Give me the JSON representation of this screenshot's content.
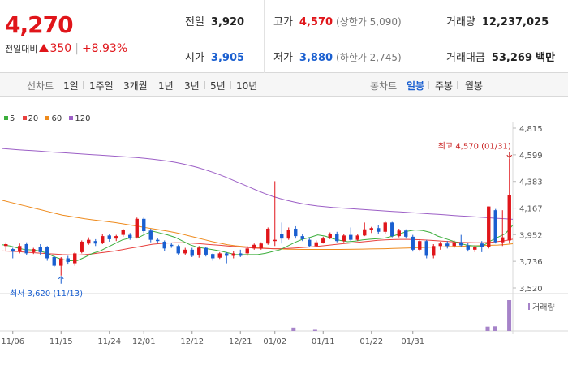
{
  "header": {
    "price": "4,270",
    "change_label": "전일대비",
    "change_amount": "350",
    "change_pct": "+8.93%",
    "stats": {
      "prev_close": {
        "label": "전일",
        "value": "3,920"
      },
      "open": {
        "label": "시가",
        "value": "3,905"
      },
      "high": {
        "label": "고가",
        "value": "4,570",
        "note": "(상한가 5,090)"
      },
      "low": {
        "label": "저가",
        "value": "3,880",
        "note": "(하한가 2,745)"
      },
      "volume": {
        "label": "거래량",
        "value": "12,237,025"
      },
      "turnover": {
        "label": "거래대금",
        "value": "53,269",
        "unit": "백만"
      }
    }
  },
  "tabs": {
    "line_label": "선차트",
    "periods": [
      "1일",
      "1주일",
      "3개월",
      "1년",
      "3년",
      "5년",
      "10년"
    ],
    "candle_label": "봉차트",
    "candle_periods": [
      "일봉",
      "주봉",
      "월봉"
    ],
    "active_candle": "일봉"
  },
  "colors": {
    "up": "#e0151a",
    "down": "#1a5fd0",
    "ma5": "#3cae3c",
    "ma20": "#e8413e",
    "ma60": "#ee8a1c",
    "ma120": "#9c5fc6",
    "volume": "#a683c9"
  },
  "legend": [
    {
      "label": "5",
      "color": "#3cae3c"
    },
    {
      "label": "20",
      "color": "#e8413e"
    },
    {
      "label": "60",
      "color": "#ee8a1c"
    },
    {
      "label": "120",
      "color": "#9c5fc6"
    }
  ],
  "chart_data": {
    "type": "candlestick",
    "y_ticks": [
      4815,
      4599,
      4383,
      4167,
      3952,
      3736,
      3520
    ],
    "y_tick_labels": [
      "4,815",
      "4,599",
      "4,383",
      "4,167",
      "3,952",
      "3,736",
      "3,520"
    ],
    "ylim": [
      3520,
      4815
    ],
    "x_labels": [
      "11/06",
      "11/15",
      "11/24",
      "12/01",
      "12/12",
      "12/21",
      "01/02",
      "01/11",
      "01/22",
      "01/31"
    ],
    "x_label_index": [
      1,
      8,
      15,
      20,
      27,
      34,
      39,
      46,
      53,
      59
    ],
    "max_annotation": "최고 4,570 (01/31)",
    "min_annotation": "최저 3,620 (11/13)",
    "volume_label": "거래량",
    "candles": [
      [
        3860,
        3875,
        3815,
        3890
      ],
      [
        3835,
        3815,
        3760,
        3845
      ],
      [
        3820,
        3860,
        3800,
        3880
      ],
      [
        3875,
        3800,
        3785,
        3890
      ],
      [
        3810,
        3835,
        3795,
        3845
      ],
      [
        3855,
        3810,
        3790,
        3875
      ],
      [
        3850,
        3760,
        3740,
        3860
      ],
      [
        3770,
        3700,
        3690,
        3780
      ],
      [
        3700,
        3760,
        3620,
        3770
      ],
      [
        3760,
        3730,
        3710,
        3780
      ],
      [
        3720,
        3800,
        3700,
        3810
      ],
      [
        3810,
        3895,
        3800,
        3905
      ],
      [
        3880,
        3910,
        3870,
        3930
      ],
      [
        3900,
        3880,
        3860,
        3915
      ],
      [
        3885,
        3940,
        3875,
        3955
      ],
      [
        3945,
        3915,
        3895,
        3955
      ],
      [
        3920,
        3940,
        3900,
        3950
      ],
      [
        3950,
        3990,
        3935,
        4000
      ],
      [
        3950,
        3925,
        3910,
        3965
      ],
      [
        3930,
        4080,
        3920,
        4090
      ],
      [
        4080,
        3980,
        3965,
        4090
      ],
      [
        3985,
        3910,
        3890,
        4000
      ],
      [
        3910,
        3900,
        3880,
        3925
      ],
      [
        3895,
        3840,
        3820,
        3905
      ],
      [
        3870,
        3860,
        3845,
        3885
      ],
      [
        3860,
        3800,
        3790,
        3870
      ],
      [
        3800,
        3830,
        3790,
        3845
      ],
      [
        3830,
        3780,
        3770,
        3845
      ],
      [
        3790,
        3845,
        3765,
        3860
      ],
      [
        3845,
        3790,
        3775,
        3855
      ],
      [
        3795,
        3760,
        3740,
        3800
      ],
      [
        3765,
        3800,
        3755,
        3810
      ],
      [
        3800,
        3780,
        3720,
        3810
      ],
      [
        3780,
        3800,
        3760,
        3820
      ],
      [
        3800,
        3780,
        3770,
        3830
      ]
    ],
    "candles_part2": [
      [
        3800,
        3840,
        3780,
        3860
      ],
      [
        3840,
        3870,
        3830,
        3880
      ],
      [
        3840,
        3880,
        3830,
        3890
      ],
      [
        3880,
        4000,
        3870,
        4010
      ],
      [
        3900,
        3910,
        3860,
        4385
      ],
      [
        3960,
        3920,
        3880,
        4050
      ],
      [
        3920,
        3990,
        3910,
        4010
      ],
      [
        4000,
        3940,
        3920,
        4020
      ],
      [
        3940,
        3915,
        3900,
        3960
      ],
      [
        3910,
        3860,
        3850,
        3925
      ],
      [
        3860,
        3890,
        3855,
        3905
      ],
      [
        3885,
        3920,
        3880,
        3935
      ],
      [
        3925,
        3960,
        3915,
        3970
      ],
      [
        3960,
        3900,
        3890,
        3975
      ],
      [
        3900,
        3945,
        3890,
        3960
      ],
      [
        3950,
        3910,
        3900,
        4010
      ],
      [
        3910,
        3945,
        3900,
        3960
      ],
      [
        3945,
        3995,
        3940,
        4050
      ],
      [
        3990,
        4005,
        3965,
        4015
      ],
      [
        4005,
        3975,
        3960,
        4030
      ],
      [
        3975,
        4050,
        3960,
        4065
      ],
      [
        4050,
        3940,
        3930,
        4055
      ],
      [
        3940,
        3985,
        3930,
        4000
      ],
      [
        3985,
        3935,
        3920,
        3995
      ],
      [
        3935,
        3830,
        3815,
        3950
      ],
      [
        3830,
        3900,
        3815,
        3915
      ],
      [
        3900,
        3780,
        3760,
        3910
      ],
      [
        3780,
        3860,
        3760,
        3875
      ],
      [
        3860,
        3880,
        3830,
        3895
      ],
      [
        3880,
        3860,
        3840,
        3900
      ],
      [
        3860,
        3890,
        3845,
        3905
      ],
      [
        3890,
        3865,
        3850,
        3950
      ],
      [
        3865,
        3830,
        3815,
        3885
      ],
      [
        3830,
        3850,
        3810,
        3865
      ],
      [
        3880,
        3850,
        3810,
        3900
      ],
      [
        3850,
        4180,
        3840,
        4180
      ],
      [
        4150,
        3890,
        3880,
        4160
      ],
      [
        3890,
        3930,
        3860,
        4150
      ],
      [
        3905,
        4270,
        3880,
        4570
      ]
    ],
    "ma5": [
      3870,
      3860,
      3845,
      3830,
      3828,
      3820,
      3800,
      3770,
      3750,
      3740,
      3742,
      3770,
      3800,
      3820,
      3850,
      3880,
      3910,
      3925,
      3925,
      3955,
      3980,
      3965,
      3950,
      3930,
      3900,
      3870,
      3850,
      3840,
      3830,
      3820,
      3805,
      3790,
      3790,
      3790,
      3790,
      3800,
      3815,
      3830,
      3860,
      3890,
      3915,
      3930,
      3950,
      3940,
      3920,
      3905,
      3895,
      3900,
      3910,
      3915,
      3920,
      3925,
      3940,
      3960,
      3980,
      3990,
      3985,
      3970,
      3940,
      3920,
      3900,
      3880,
      3865,
      3860,
      3860,
      3900,
      3930,
      3960,
      4030
    ],
    "ma20": [
      3820,
      3818,
      3815,
      3810,
      3806,
      3802,
      3798,
      3794,
      3790,
      3788,
      3786,
      3790,
      3796,
      3804,
      3812,
      3820,
      3830,
      3842,
      3852,
      3864,
      3874,
      3880,
      3884,
      3886,
      3886,
      3884,
      3880,
      3875,
      3870,
      3866,
      3860,
      3855,
      3850,
      3846,
      3842,
      3840,
      3838,
      3838,
      3840,
      3844,
      3848,
      3852,
      3858,
      3864,
      3870,
      3876,
      3882,
      3888,
      3894,
      3900,
      3906,
      3910,
      3912,
      3914,
      3914,
      3912,
      3910,
      3906,
      3902,
      3898,
      3894,
      3890,
      3888,
      3886,
      3886,
      3890,
      3896,
      3904,
      3915
    ],
    "ma60": [
      4230,
      4215,
      4200,
      4185,
      4170,
      4155,
      4140,
      4125,
      4110,
      4100,
      4090,
      4080,
      4072,
      4065,
      4058,
      4050,
      4040,
      4030,
      4020,
      4010,
      4000,
      3990,
      3980,
      3968,
      3955,
      3940,
      3925,
      3910,
      3895,
      3882,
      3870,
      3862,
      3856,
      3850,
      3846,
      3842,
      3838,
      3836,
      3834,
      3833,
      3832,
      3832,
      3832,
      3832,
      3832,
      3832,
      3833,
      3834,
      3835,
      3836,
      3837,
      3838,
      3840,
      3842,
      3844,
      3846,
      3848,
      3850,
      3852,
      3854,
      3856,
      3858,
      3860,
      3862,
      3864,
      3866,
      3868,
      3872,
      3878
    ],
    "ma120": [
      4650,
      4645,
      4640,
      4636,
      4632,
      4628,
      4624,
      4620,
      4616,
      4612,
      4608,
      4604,
      4600,
      4596,
      4592,
      4588,
      4584,
      4580,
      4576,
      4570,
      4564,
      4556,
      4548,
      4538,
      4526,
      4512,
      4496,
      4478,
      4458,
      4436,
      4412,
      4386,
      4360,
      4334,
      4308,
      4284,
      4262,
      4244,
      4228,
      4214,
      4202,
      4192,
      4184,
      4178,
      4172,
      4168,
      4164,
      4160,
      4156,
      4152,
      4148,
      4144,
      4140,
      4136,
      4132,
      4128,
      4124,
      4120,
      4116,
      4112,
      4108,
      4104,
      4100,
      4096,
      4092,
      4088,
      4084,
      4080,
      4076
    ],
    "volume": [
      0,
      0,
      0,
      0,
      0,
      0,
      0,
      0,
      0,
      0,
      0,
      0,
      0,
      0,
      0,
      0,
      0,
      0,
      0,
      0,
      0,
      0,
      0,
      0,
      0,
      0,
      0,
      0,
      0,
      0,
      0,
      0,
      0,
      0,
      0,
      0,
      0,
      0,
      0,
      0,
      0.11,
      0,
      0,
      0.04,
      0,
      0,
      0,
      0,
      0,
      0,
      0,
      0,
      0,
      0,
      0,
      0,
      0,
      0,
      0,
      0,
      0,
      0,
      0,
      0,
      0,
      0,
      0,
      0.14,
      0.15,
      0,
      1.0
    ]
  }
}
